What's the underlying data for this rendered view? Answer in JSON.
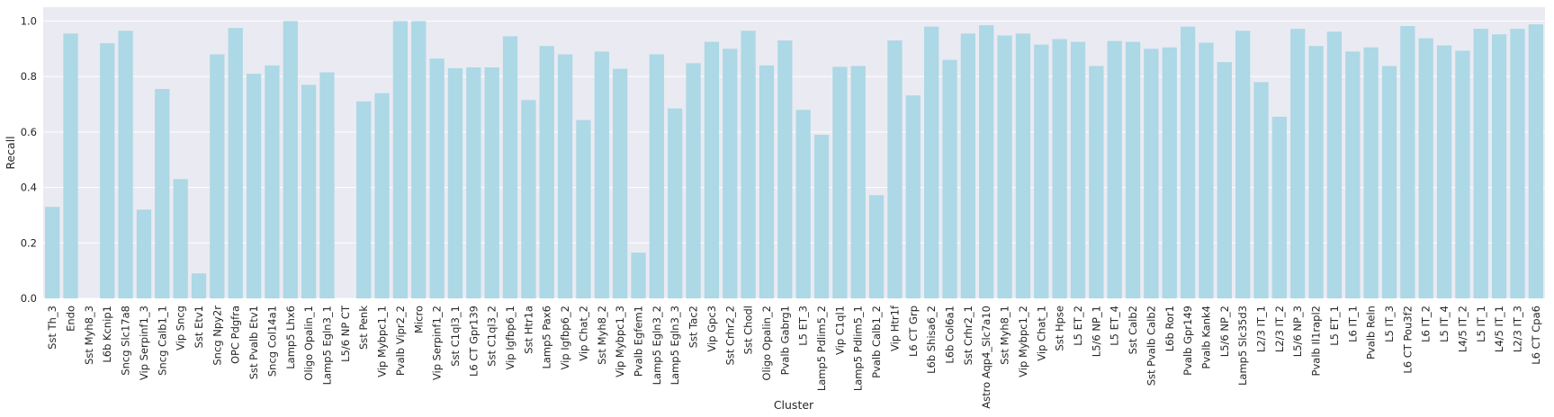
{
  "chart_data": {
    "type": "bar",
    "title": "",
    "xlabel": "Cluster",
    "ylabel": "Recall",
    "ylim": [
      0,
      1.05
    ],
    "yticks": [
      0.0,
      0.2,
      0.4,
      0.6,
      0.8,
      1.0
    ],
    "ytick_labels": [
      "0.0",
      "0.2",
      "0.4",
      "0.6",
      "0.8",
      "1.0"
    ],
    "grid": true,
    "bar_color": "#add8e6",
    "background_color": "#eaeaf2",
    "categories": [
      "Sst Th_3",
      "Endo",
      "Sst Myh8_3",
      "L6b Kcnip1",
      "Sncg Slc17a8",
      "Vip Serpinf1_3",
      "Sncg Calb1_1",
      "Vip Sncg",
      "Sst Etv1",
      "Sncg Npy2r",
      "OPC Pdgfra",
      "Sst Pvalb Etv1",
      "Sncg Col14a1",
      "Lamp5 Lhx6",
      "Oligo Opalin_1",
      "Lamp5 Egln3_1",
      "L5/6 NP CT",
      "Sst Penk",
      "Vip Mybpc1_1",
      "Pvalb Vipr2_2",
      "Micro",
      "Vip Serpinf1_2",
      "Sst C1ql3_1",
      "L6 CT Gpr139",
      "Sst C1ql3_2",
      "Vip Igfbp6_1",
      "Sst Htr1a",
      "Lamp5 Pax6",
      "Vip Igfbp6_2",
      "Vip Chat_2",
      "Sst Myh8_2",
      "Vip Mybpc1_3",
      "Pvalb Egfem1",
      "Lamp5 Egln3_2",
      "Lamp5 Egln3_3",
      "Sst Tac2",
      "Vip Gpc3",
      "Sst Crhr2_2",
      "Sst Chodl",
      "Oligo Opalin_2",
      "Pvalb Gabrg1",
      "L5 ET_3",
      "Lamp5 Pdlim5_2",
      "Vip C1ql1",
      "Lamp5 Pdlim5_1",
      "Pvalb Calb1_2",
      "Vip Htr1f",
      "L6 CT Grp",
      "L6b Shisa6_2",
      "L6b Col6a1",
      "Sst Crhr2_1",
      "Astro Aqp4_Slc7a10",
      "Sst Myh8_1",
      "Vip Mybpc1_2",
      "Vip Chat_1",
      "Sst Hpse",
      "L5 ET_2",
      "L5/6 NP_1",
      "L5 ET_4",
      "Sst Calb2",
      "Sst Pvalb Calb2",
      "L6b Ror1",
      "Pvalb Gpr149",
      "Pvalb Kank4",
      "L5/6 NP_2",
      "Lamp5 Slc35d3",
      "L2/3 IT_1",
      "L2/3 IT_2",
      "L5/6 NP_3",
      "Pvalb Il1rapl2",
      "L5 ET_1",
      "L6 IT_1",
      "Pvalb Reln",
      "L5 IT_3",
      "L6 CT Pou3f2",
      "L6 IT_2",
      "L5 IT_4",
      "L4/5 IT_2",
      "L5 IT_1",
      "L4/5 IT_1",
      "L2/3 IT_3",
      "L6 CT Cpa6"
    ],
    "values": [
      0.33,
      0.955,
      0.0,
      0.92,
      0.965,
      0.32,
      0.755,
      0.43,
      0.09,
      0.88,
      0.975,
      0.81,
      0.84,
      1.0,
      0.77,
      0.815,
      0.0,
      0.71,
      0.74,
      1.0,
      1.0,
      0.865,
      0.83,
      0.833,
      0.833,
      0.945,
      0.715,
      0.91,
      0.88,
      0.643,
      0.89,
      0.828,
      0.165,
      0.88,
      0.685,
      0.848,
      0.925,
      0.9,
      0.965,
      0.84,
      0.93,
      0.68,
      0.59,
      0.835,
      0.838,
      0.372,
      0.93,
      0.732,
      0.98,
      0.86,
      0.955,
      0.985,
      0.948,
      0.955,
      0.915,
      0.935,
      0.925,
      0.838,
      0.928,
      0.925,
      0.9,
      0.905,
      0.98,
      0.922,
      0.852,
      0.965,
      0.78,
      0.655,
      0.972,
      0.91,
      0.962,
      0.89,
      0.905,
      0.838,
      0.982,
      0.938,
      0.912,
      0.893,
      0.972,
      0.952,
      0.972,
      0.988
    ]
  }
}
